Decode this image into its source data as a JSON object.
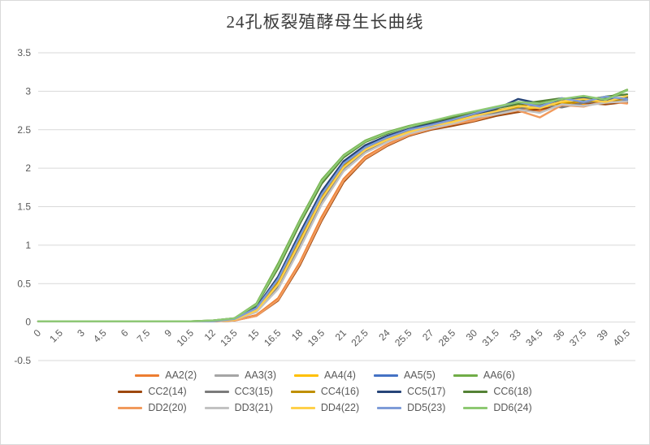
{
  "style": {
    "background": "#ffffff",
    "border_color": "#d9d9d9",
    "grid_color": "#d9d9d9",
    "tick_label_color": "#595959",
    "title_color": "#3b3b3b",
    "legend_text_color": "#595959"
  },
  "chart_data": {
    "type": "line",
    "title": "24孔板裂殖酵母生长曲线",
    "xlabel": "",
    "ylabel": "",
    "ylim": [
      -0.5,
      3.5
    ],
    "ytick_step": 0.5,
    "ytick_labels": [
      "3.5",
      "3",
      "2.5",
      "2",
      "1.5",
      "1",
      "0.5",
      "0",
      "-0.5"
    ],
    "grid": true,
    "legend_position": "bottom",
    "x": [
      0,
      1.5,
      3,
      4.5,
      6,
      7.5,
      9,
      10.5,
      12,
      13.5,
      15,
      16.5,
      18,
      19.5,
      21,
      22.5,
      24,
      25.5,
      27,
      28.5,
      30,
      31.5,
      33,
      34.5,
      36,
      37.5,
      39,
      40.5
    ],
    "xtick_labels": [
      "0",
      "1.5",
      "3",
      "4.5",
      "6",
      "7.5",
      "9",
      "10.5",
      "12",
      "13.5",
      "15",
      "16.5",
      "18",
      "19.5",
      "21",
      "22.5",
      "24",
      "25.5",
      "27",
      "28.5",
      "30",
      "31.5",
      "33",
      "34.5",
      "36",
      "37.5",
      "39",
      "40.5"
    ],
    "series": [
      {
        "id": "aa2-2",
        "name": "AA2(2)",
        "color": "#ED7D31",
        "values": [
          0.01,
          0.01,
          0.01,
          0.01,
          0.01,
          0.01,
          0.01,
          0.01,
          0.01,
          0.02,
          0.09,
          0.31,
          0.78,
          1.37,
          1.86,
          2.15,
          2.31,
          2.44,
          2.52,
          2.56,
          2.64,
          2.71,
          2.78,
          2.74,
          2.85,
          2.82,
          2.86,
          2.9
        ]
      },
      {
        "id": "aa3-3",
        "name": "AA3(3)",
        "color": "#A5A5A5",
        "values": [
          0.01,
          0.01,
          0.01,
          0.01,
          0.01,
          0.01,
          0.01,
          0.01,
          0.01,
          0.03,
          0.13,
          0.44,
          0.97,
          1.54,
          1.97,
          2.21,
          2.35,
          2.46,
          2.53,
          2.6,
          2.65,
          2.74,
          2.73,
          2.8,
          2.81,
          2.87,
          2.84,
          2.88
        ]
      },
      {
        "id": "aa4-4",
        "name": "AA4(4)",
        "color": "#FFC000",
        "values": [
          0.01,
          0.01,
          0.01,
          0.01,
          0.01,
          0.01,
          0.01,
          0.01,
          0.01,
          0.03,
          0.15,
          0.5,
          1.05,
          1.61,
          2.02,
          2.25,
          2.38,
          2.48,
          2.55,
          2.61,
          2.68,
          2.71,
          2.79,
          2.77,
          2.86,
          2.84,
          2.9,
          2.92
        ]
      },
      {
        "id": "aa5-5",
        "name": "AA5(5)",
        "color": "#4472C4",
        "values": [
          0.01,
          0.01,
          0.01,
          0.01,
          0.01,
          0.01,
          0.01,
          0.01,
          0.01,
          0.04,
          0.18,
          0.57,
          1.13,
          1.67,
          2.07,
          2.28,
          2.41,
          2.5,
          2.57,
          2.63,
          2.72,
          2.78,
          2.84,
          2.81,
          2.9,
          2.87,
          2.92,
          2.89
        ]
      },
      {
        "id": "aa6-6",
        "name": "AA6(6)",
        "color": "#70AD47",
        "values": [
          0.01,
          0.01,
          0.01,
          0.01,
          0.01,
          0.01,
          0.01,
          0.01,
          0.02,
          0.05,
          0.24,
          0.76,
          1.33,
          1.85,
          2.17,
          2.36,
          2.47,
          2.55,
          2.61,
          2.67,
          2.73,
          2.79,
          2.85,
          2.83,
          2.89,
          2.92,
          2.9,
          3.02
        ]
      },
      {
        "id": "cc2-14",
        "name": "CC2(14)",
        "color": "#9E480E",
        "values": [
          0.01,
          0.01,
          0.01,
          0.01,
          0.01,
          0.01,
          0.01,
          0.01,
          0.01,
          0.02,
          0.08,
          0.28,
          0.74,
          1.32,
          1.82,
          2.12,
          2.29,
          2.42,
          2.5,
          2.55,
          2.61,
          2.68,
          2.73,
          2.77,
          2.8,
          2.85,
          2.83,
          2.86
        ]
      },
      {
        "id": "cc3-15",
        "name": "CC3(15)",
        "color": "#7B7B7B",
        "values": [
          0.01,
          0.01,
          0.01,
          0.01,
          0.01,
          0.01,
          0.01,
          0.01,
          0.01,
          0.03,
          0.14,
          0.47,
          1.01,
          1.58,
          2.0,
          2.23,
          2.36,
          2.47,
          2.54,
          2.59,
          2.67,
          2.72,
          2.77,
          2.82,
          2.79,
          2.85,
          2.88,
          2.85
        ]
      },
      {
        "id": "cc4-16",
        "name": "CC4(16)",
        "color": "#BF8F00",
        "values": [
          0.01,
          0.01,
          0.01,
          0.01,
          0.01,
          0.01,
          0.01,
          0.01,
          0.01,
          0.03,
          0.16,
          0.52,
          1.08,
          1.63,
          2.04,
          2.26,
          2.39,
          2.49,
          2.56,
          2.62,
          2.69,
          2.75,
          2.8,
          2.86,
          2.83,
          2.88,
          2.86,
          2.91
        ]
      },
      {
        "id": "cc5-17",
        "name": "CC5(17)",
        "color": "#264478",
        "values": [
          0.01,
          0.01,
          0.01,
          0.01,
          0.01,
          0.01,
          0.01,
          0.01,
          0.01,
          0.04,
          0.19,
          0.59,
          1.16,
          1.7,
          2.09,
          2.3,
          2.42,
          2.51,
          2.58,
          2.64,
          2.7,
          2.77,
          2.9,
          2.84,
          2.88,
          2.91,
          2.87,
          2.93
        ]
      },
      {
        "id": "cc6-18",
        "name": "CC6(18)",
        "color": "#548235",
        "values": [
          0.01,
          0.01,
          0.01,
          0.01,
          0.01,
          0.01,
          0.01,
          0.01,
          0.02,
          0.05,
          0.22,
          0.7,
          1.28,
          1.8,
          2.14,
          2.34,
          2.45,
          2.54,
          2.6,
          2.66,
          2.72,
          2.78,
          2.83,
          2.87,
          2.91,
          2.88,
          2.93,
          2.96
        ]
      },
      {
        "id": "dd2-20",
        "name": "DD2(20)",
        "color": "#F19A5C",
        "values": [
          0.01,
          0.01,
          0.01,
          0.01,
          0.01,
          0.01,
          0.01,
          0.01,
          0.01,
          0.02,
          0.08,
          0.29,
          0.76,
          1.34,
          1.84,
          2.13,
          2.3,
          2.43,
          2.51,
          2.57,
          2.62,
          2.7,
          2.75,
          2.66,
          2.82,
          2.8,
          2.87,
          2.84
        ]
      },
      {
        "id": "dd3-21",
        "name": "DD3(21)",
        "color": "#C2C2C2",
        "values": [
          0.01,
          0.01,
          0.01,
          0.01,
          0.01,
          0.01,
          0.01,
          0.01,
          0.01,
          0.03,
          0.13,
          0.43,
          0.96,
          1.53,
          1.96,
          2.2,
          2.34,
          2.45,
          2.52,
          2.58,
          2.66,
          2.7,
          2.76,
          2.72,
          2.83,
          2.81,
          2.85,
          2.87
        ]
      },
      {
        "id": "dd4-22",
        "name": "DD4(22)",
        "color": "#FFD04A",
        "values": [
          0.01,
          0.01,
          0.01,
          0.01,
          0.01,
          0.01,
          0.01,
          0.01,
          0.01,
          0.03,
          0.15,
          0.49,
          1.04,
          1.6,
          2.01,
          2.24,
          2.37,
          2.47,
          2.55,
          2.6,
          2.68,
          2.74,
          2.81,
          2.78,
          2.87,
          2.9,
          2.86,
          2.94
        ]
      },
      {
        "id": "dd5-23",
        "name": "DD5(23)",
        "color": "#7E9CD8",
        "values": [
          0.01,
          0.01,
          0.01,
          0.01,
          0.01,
          0.01,
          0.01,
          0.01,
          0.01,
          0.04,
          0.18,
          0.56,
          1.12,
          1.66,
          2.06,
          2.27,
          2.4,
          2.5,
          2.56,
          2.63,
          2.71,
          2.79,
          2.86,
          2.8,
          2.91,
          2.86,
          2.93,
          2.9
        ]
      },
      {
        "id": "dd6-24",
        "name": "DD6(24)",
        "color": "#8DC972",
        "values": [
          0.01,
          0.01,
          0.01,
          0.01,
          0.01,
          0.01,
          0.01,
          0.01,
          0.02,
          0.05,
          0.23,
          0.73,
          1.31,
          1.83,
          2.16,
          2.35,
          2.46,
          2.54,
          2.61,
          2.68,
          2.74,
          2.8,
          2.86,
          2.84,
          2.9,
          2.94,
          2.89,
          3.01
        ]
      }
    ]
  }
}
